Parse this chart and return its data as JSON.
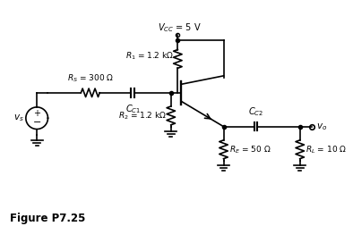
{
  "title": "Figure P7.25",
  "vcc_label": "$V_{CC}$ = 5 V",
  "r1_label": "$R_1$ = 1.2 kΩ",
  "r2_label": "$R_2$ = 1.2 kΩ",
  "rs_label": "$R_S$ = 300 Ω",
  "re_label": "$R_E$ = 50 Ω",
  "rl_label": "$R_L$ = 10 Ω",
  "cc1_label": "$C_{C1}$",
  "cc2_label": "$C_{C2}$",
  "vs_label": "$v_s$",
  "vo_label": "$v_o$",
  "bg_color": "#ffffff",
  "line_color": "#000000"
}
